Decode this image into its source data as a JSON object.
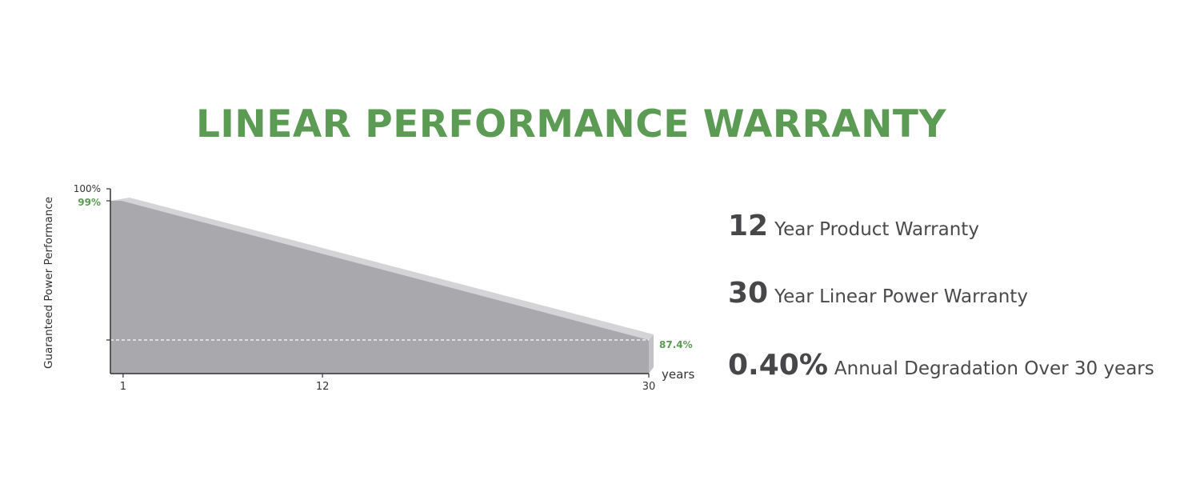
{
  "title": "LINEAR PERFORMANCE WARRANTY",
  "stats": [
    {
      "number": "12",
      "text": "Year Product Warranty"
    },
    {
      "number": "30",
      "text": "Year Linear Power Warranty"
    },
    {
      "number": "0.40%",
      "text": "Annual Degradation Over 30 years"
    }
  ],
  "chart_data": {
    "type": "area",
    "ylabel": "Guaranteed Power Performance",
    "xlabel": "years",
    "x_ticks": [
      "1",
      "12",
      "30"
    ],
    "y_ticks": [
      "100%"
    ],
    "x": [
      1,
      30
    ],
    "y": [
      99,
      87.4
    ],
    "ylim": [
      84.6,
      100
    ],
    "xlim": [
      0.3,
      30
    ],
    "annotations": [
      {
        "text": "99%",
        "x": 1,
        "y": 99
      },
      {
        "text": "87.4%",
        "x": 30,
        "y": 87.4
      }
    ],
    "reference_line": {
      "y": 87.4,
      "style": "dashed"
    },
    "colors": {
      "fill": "#a9a9ad",
      "bevel_top": "#d4d4d7",
      "bevel_side": "#c3c3c6",
      "annotation": "#5b9b53",
      "axis": "#333333"
    },
    "grid": false
  }
}
